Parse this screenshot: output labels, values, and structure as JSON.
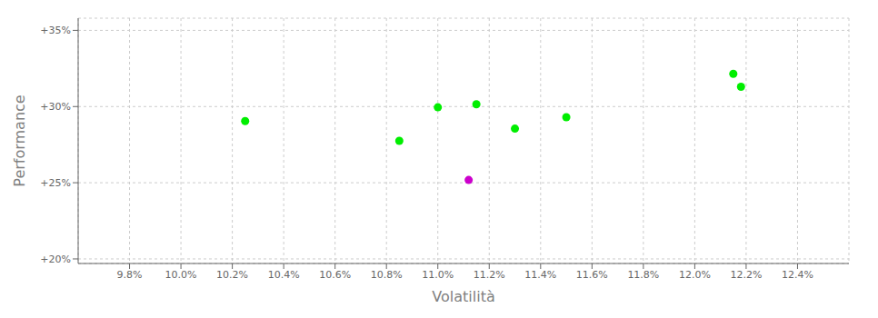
{
  "chart_data": {
    "type": "scatter",
    "xlabel": "Volatilità",
    "ylabel": "Performance",
    "xlim": [
      0.096,
      0.126
    ],
    "ylim": [
      0.197,
      0.358
    ],
    "xticks": [
      {
        "value": 0.098,
        "label": "9.8%"
      },
      {
        "value": 0.1,
        "label": "10.0%"
      },
      {
        "value": 0.102,
        "label": "10.2%"
      },
      {
        "value": 0.104,
        "label": "10.4%"
      },
      {
        "value": 0.106,
        "label": "10.6%"
      },
      {
        "value": 0.108,
        "label": "10.8%"
      },
      {
        "value": 0.11,
        "label": "11.0%"
      },
      {
        "value": 0.112,
        "label": "11.2%"
      },
      {
        "value": 0.114,
        "label": "11.4%"
      },
      {
        "value": 0.116,
        "label": "11.6%"
      },
      {
        "value": 0.118,
        "label": "11.8%"
      },
      {
        "value": 0.12,
        "label": "12.0%"
      },
      {
        "value": 0.122,
        "label": "12.2%"
      },
      {
        "value": 0.124,
        "label": "12.4%"
      }
    ],
    "yticks": [
      {
        "value": 0.2,
        "label": "+20%"
      },
      {
        "value": 0.25,
        "label": "+25%"
      },
      {
        "value": 0.3,
        "label": "+30%"
      },
      {
        "value": 0.35,
        "label": "+35%"
      }
    ],
    "grid": true,
    "series": [
      {
        "color": "#00ee00",
        "x": [
          0.1025,
          0.1085,
          0.11,
          0.1115,
          0.113,
          0.115,
          0.1215,
          0.1218
        ],
        "values": [
          0.2905,
          0.2775,
          0.2995,
          0.3015,
          0.2855,
          0.293,
          0.3215,
          0.313
        ]
      },
      {
        "color": "#cc00cc",
        "x": [
          0.1112
        ],
        "values": [
          0.2518
        ]
      }
    ]
  }
}
